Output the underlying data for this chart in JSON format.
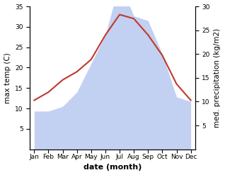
{
  "months": [
    "Jan",
    "Feb",
    "Mar",
    "Apr",
    "May",
    "Jun",
    "Jul",
    "Aug",
    "Sep",
    "Oct",
    "Nov",
    "Dec"
  ],
  "temperature": [
    12,
    14,
    17,
    19,
    22,
    28,
    33,
    32,
    28,
    23,
    16,
    12
  ],
  "precipitation": [
    8,
    8,
    9,
    12,
    18,
    24,
    35,
    28,
    27,
    20,
    11,
    10
  ],
  "temp_color": "#c0392b",
  "precip_fill_color": "#b8c8f0",
  "temp_ylim": [
    0,
    35
  ],
  "precip_ylim": [
    0,
    30
  ],
  "temp_yticks": [
    5,
    10,
    15,
    20,
    25,
    30,
    35
  ],
  "precip_yticks": [
    5,
    10,
    15,
    20,
    25,
    30
  ],
  "xlabel": "date (month)",
  "ylabel_left": "max temp (C)",
  "ylabel_right": "med. precipitation (kg/m2)",
  "label_fontsize": 7.5,
  "tick_fontsize": 6.5,
  "xlabel_fontsize": 8,
  "linewidth": 1.5
}
